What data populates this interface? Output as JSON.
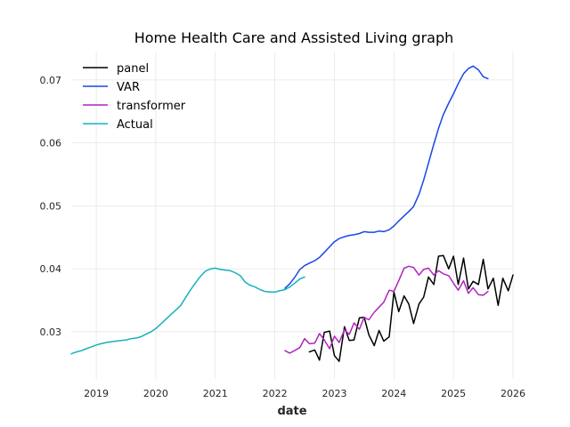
{
  "chart_data": {
    "type": "line",
    "title": "Home Health Care and Assisted Living graph",
    "xlabel": "date",
    "ylabel": "",
    "xlim": [
      2018.58,
      2026.0
    ],
    "ylim": [
      0.0225,
      0.0745
    ],
    "x_ticks": [
      2019,
      2020,
      2021,
      2022,
      2023,
      2024,
      2025,
      2026
    ],
    "x_tick_labels": [
      "2019",
      "2020",
      "2021",
      "2022",
      "2023",
      "2024",
      "2025",
      "2026"
    ],
    "y_ticks": [
      0.03,
      0.04,
      0.05,
      0.06,
      0.07
    ],
    "y_tick_labels": [
      "0.03",
      "0.04",
      "0.05",
      "0.06",
      "0.07"
    ],
    "grid": true,
    "legend_position": "top-left",
    "series": [
      {
        "name": "panel",
        "color": "#000000",
        "points": [
          [
            2022.58,
            0.0268
          ],
          [
            2022.67,
            0.0271
          ],
          [
            2022.75,
            0.0255
          ],
          [
            2022.83,
            0.0299
          ],
          [
            2022.92,
            0.0301
          ],
          [
            2023.0,
            0.0262
          ],
          [
            2023.08,
            0.0253
          ],
          [
            2023.17,
            0.0308
          ],
          [
            2023.25,
            0.0286
          ],
          [
            2023.33,
            0.0287
          ],
          [
            2023.42,
            0.0322
          ],
          [
            2023.5,
            0.0323
          ],
          [
            2023.58,
            0.0295
          ],
          [
            2023.67,
            0.0278
          ],
          [
            2023.75,
            0.0302
          ],
          [
            2023.83,
            0.0285
          ],
          [
            2023.92,
            0.0292
          ],
          [
            2024.0,
            0.0363
          ],
          [
            2024.08,
            0.0332
          ],
          [
            2024.17,
            0.0357
          ],
          [
            2024.25,
            0.0344
          ],
          [
            2024.33,
            0.0313
          ],
          [
            2024.42,
            0.0344
          ],
          [
            2024.5,
            0.0355
          ],
          [
            2024.58,
            0.0387
          ],
          [
            2024.67,
            0.0375
          ],
          [
            2024.75,
            0.042
          ],
          [
            2024.83,
            0.0421
          ],
          [
            2024.92,
            0.04
          ],
          [
            2025.0,
            0.042
          ],
          [
            2025.08,
            0.0375
          ],
          [
            2025.17,
            0.0417
          ],
          [
            2025.25,
            0.0368
          ],
          [
            2025.33,
            0.038
          ],
          [
            2025.42,
            0.0375
          ],
          [
            2025.5,
            0.0415
          ],
          [
            2025.58,
            0.0368
          ],
          [
            2025.67,
            0.0385
          ],
          [
            2025.75,
            0.0342
          ],
          [
            2025.83,
            0.0385
          ],
          [
            2025.92,
            0.0365
          ],
          [
            2026.0,
            0.039
          ]
        ]
      },
      {
        "name": "VAR",
        "color": "#1847e6",
        "points": [
          [
            2022.17,
            0.0369
          ],
          [
            2022.25,
            0.0376
          ],
          [
            2022.33,
            0.0386
          ],
          [
            2022.42,
            0.0399
          ],
          [
            2022.5,
            0.0405
          ],
          [
            2022.58,
            0.0409
          ],
          [
            2022.67,
            0.0413
          ],
          [
            2022.75,
            0.0418
          ],
          [
            2022.83,
            0.0426
          ],
          [
            2022.92,
            0.0435
          ],
          [
            2023.0,
            0.0443
          ],
          [
            2023.08,
            0.0448
          ],
          [
            2023.17,
            0.0451
          ],
          [
            2023.25,
            0.0453
          ],
          [
            2023.33,
            0.0454
          ],
          [
            2023.42,
            0.0456
          ],
          [
            2023.5,
            0.0459
          ],
          [
            2023.58,
            0.0458
          ],
          [
            2023.67,
            0.0458
          ],
          [
            2023.75,
            0.046
          ],
          [
            2023.83,
            0.0459
          ],
          [
            2023.92,
            0.0462
          ],
          [
            2024.0,
            0.0468
          ],
          [
            2024.08,
            0.0476
          ],
          [
            2024.17,
            0.0484
          ],
          [
            2024.25,
            0.0491
          ],
          [
            2024.33,
            0.0499
          ],
          [
            2024.42,
            0.0518
          ],
          [
            2024.5,
            0.0541
          ],
          [
            2024.58,
            0.0568
          ],
          [
            2024.67,
            0.0598
          ],
          [
            2024.75,
            0.0623
          ],
          [
            2024.83,
            0.0645
          ],
          [
            2024.92,
            0.0663
          ],
          [
            2025.0,
            0.0678
          ],
          [
            2025.08,
            0.0694
          ],
          [
            2025.17,
            0.071
          ],
          [
            2025.25,
            0.0718
          ],
          [
            2025.33,
            0.0722
          ],
          [
            2025.42,
            0.0716
          ],
          [
            2025.5,
            0.0705
          ],
          [
            2025.58,
            0.0702
          ]
        ]
      },
      {
        "name": "transformer",
        "color": "#b024be",
        "points": [
          [
            2022.17,
            0.027
          ],
          [
            2022.25,
            0.0266
          ],
          [
            2022.33,
            0.027
          ],
          [
            2022.42,
            0.0275
          ],
          [
            2022.5,
            0.0289
          ],
          [
            2022.58,
            0.0281
          ],
          [
            2022.67,
            0.0282
          ],
          [
            2022.75,
            0.0297
          ],
          [
            2022.83,
            0.0287
          ],
          [
            2022.92,
            0.0273
          ],
          [
            2023.0,
            0.0293
          ],
          [
            2023.08,
            0.0283
          ],
          [
            2023.17,
            0.0303
          ],
          [
            2023.25,
            0.0296
          ],
          [
            2023.33,
            0.0314
          ],
          [
            2023.42,
            0.0304
          ],
          [
            2023.5,
            0.0323
          ],
          [
            2023.58,
            0.0319
          ],
          [
            2023.67,
            0.0331
          ],
          [
            2023.75,
            0.0339
          ],
          [
            2023.83,
            0.0347
          ],
          [
            2023.92,
            0.0366
          ],
          [
            2024.0,
            0.0364
          ],
          [
            2024.08,
            0.0381
          ],
          [
            2024.17,
            0.0401
          ],
          [
            2024.25,
            0.0404
          ],
          [
            2024.33,
            0.0402
          ],
          [
            2024.42,
            0.039
          ],
          [
            2024.5,
            0.0399
          ],
          [
            2024.58,
            0.0401
          ],
          [
            2024.67,
            0.039
          ],
          [
            2024.75,
            0.0397
          ],
          [
            2024.83,
            0.0392
          ],
          [
            2024.92,
            0.0389
          ],
          [
            2025.0,
            0.0377
          ],
          [
            2025.08,
            0.0366
          ],
          [
            2025.17,
            0.0381
          ],
          [
            2025.25,
            0.0361
          ],
          [
            2025.33,
            0.037
          ],
          [
            2025.42,
            0.0359
          ],
          [
            2025.5,
            0.0358
          ],
          [
            2025.58,
            0.0364
          ]
        ]
      },
      {
        "name": "Actual",
        "color": "#17b0be",
        "points": [
          [
            2018.58,
            0.0265
          ],
          [
            2018.67,
            0.0268
          ],
          [
            2018.75,
            0.027
          ],
          [
            2018.83,
            0.0273
          ],
          [
            2018.92,
            0.0276
          ],
          [
            2019.0,
            0.0279
          ],
          [
            2019.08,
            0.0281
          ],
          [
            2019.17,
            0.0283
          ],
          [
            2019.25,
            0.0284
          ],
          [
            2019.33,
            0.0285
          ],
          [
            2019.42,
            0.0286
          ],
          [
            2019.5,
            0.0287
          ],
          [
            2019.58,
            0.0289
          ],
          [
            2019.67,
            0.029
          ],
          [
            2019.75,
            0.0292
          ],
          [
            2019.83,
            0.0296
          ],
          [
            2019.92,
            0.03
          ],
          [
            2020.0,
            0.0305
          ],
          [
            2020.08,
            0.0312
          ],
          [
            2020.17,
            0.032
          ],
          [
            2020.25,
            0.0327
          ],
          [
            2020.33,
            0.0334
          ],
          [
            2020.42,
            0.0342
          ],
          [
            2020.5,
            0.0354
          ],
          [
            2020.58,
            0.0366
          ],
          [
            2020.67,
            0.0378
          ],
          [
            2020.75,
            0.0388
          ],
          [
            2020.83,
            0.0396
          ],
          [
            2020.92,
            0.04
          ],
          [
            2021.0,
            0.0401
          ],
          [
            2021.08,
            0.0399
          ],
          [
            2021.17,
            0.0398
          ],
          [
            2021.25,
            0.0397
          ],
          [
            2021.33,
            0.0394
          ],
          [
            2021.42,
            0.0389
          ],
          [
            2021.5,
            0.0379
          ],
          [
            2021.58,
            0.0374
          ],
          [
            2021.67,
            0.0371
          ],
          [
            2021.75,
            0.0367
          ],
          [
            2021.83,
            0.0364
          ],
          [
            2021.92,
            0.0363
          ],
          [
            2022.0,
            0.0363
          ],
          [
            2022.08,
            0.0365
          ],
          [
            2022.17,
            0.0367
          ],
          [
            2022.25,
            0.0371
          ],
          [
            2022.33,
            0.0377
          ],
          [
            2022.42,
            0.0384
          ],
          [
            2022.5,
            0.0387
          ]
        ]
      }
    ]
  }
}
